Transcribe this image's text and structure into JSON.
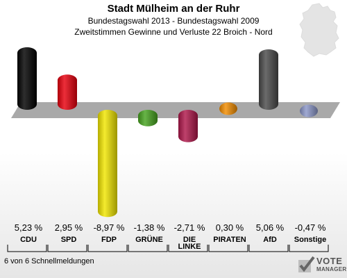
{
  "header": {
    "title": "Stadt Mülheim an der Ruhr",
    "subtitle": "Bundestagswahl 2013 - Bundestagswahl 2009",
    "description": "Zweitstimmen Gewinne und Verluste 22 Broich - Nord"
  },
  "footer": {
    "text": "6 von 6 Schnellmeldungen"
  },
  "logo": {
    "top": "VOTE",
    "bottom": "MANAGER"
  },
  "chart_data": {
    "type": "bar",
    "categories": [
      "CDU",
      "SPD",
      "FDP",
      "GRÜNE",
      "DIE LINKE",
      "PIRATEN",
      "AfD",
      "Sonstige"
    ],
    "category_lines": [
      [
        "CDU"
      ],
      [
        "SPD"
      ],
      [
        "FDP"
      ],
      [
        "GRÜNE"
      ],
      [
        "DIE",
        "LINKE"
      ],
      [
        "PIRATEN"
      ],
      [
        "AfD"
      ],
      [
        "Sonstige"
      ]
    ],
    "values": [
      5.23,
      2.95,
      -8.97,
      -1.38,
      -2.71,
      0.3,
      5.06,
      -0.47
    ],
    "value_labels": [
      "5,23 %",
      "2,95 %",
      "-8,97 %",
      "-1,38 %",
      "-2,71 %",
      "0,30 %",
      "5,06 %",
      "-0,47 %"
    ],
    "colors": [
      "#000000",
      "#e8000d",
      "#f2e600",
      "#46a41e",
      "#b0174a",
      "#f28c00",
      "#4a4a4a",
      "#8b96c8"
    ],
    "ylim": [
      -9,
      6
    ],
    "legend": "none",
    "grid": false
  }
}
